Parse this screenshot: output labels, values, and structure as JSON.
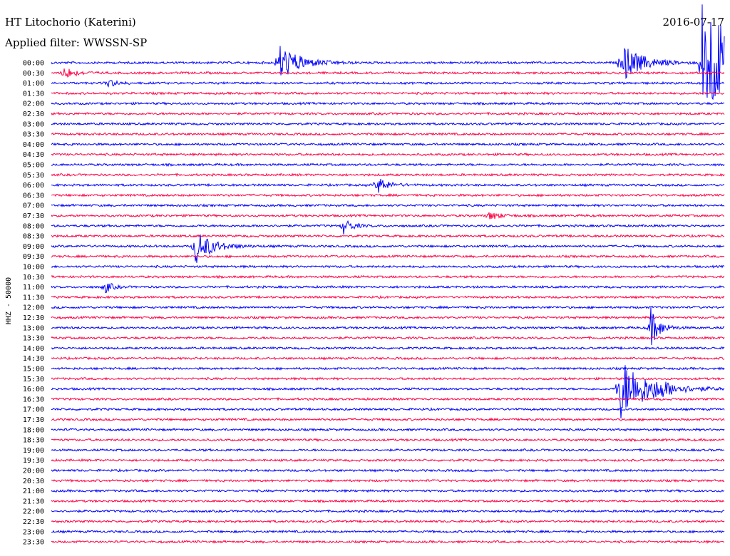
{
  "chart_data": {
    "type": "line",
    "title": "HT Litochorio (Katerini)",
    "subtitle": "Applied filter: WWSSN-SP",
    "date": "2016-07-17",
    "ylabel": "HHZ - 50000",
    "row_labels": [
      "00:00",
      "00:30",
      "01:00",
      "01:30",
      "02:00",
      "02:30",
      "03:00",
      "03:30",
      "04:00",
      "04:30",
      "05:00",
      "05:30",
      "06:00",
      "06:30",
      "07:00",
      "07:30",
      "08:00",
      "08:30",
      "09:00",
      "09:30",
      "10:00",
      "10:30",
      "11:00",
      "11:30",
      "12:00",
      "12:30",
      "13:00",
      "13:30",
      "14:00",
      "14:30",
      "15:00",
      "15:30",
      "16:00",
      "16:30",
      "17:00",
      "17:30",
      "18:00",
      "18:30",
      "19:00",
      "19:30",
      "20:00",
      "20:30",
      "21:00",
      "21:30",
      "22:00",
      "22:30",
      "23:00",
      "23:30"
    ],
    "series_colors": [
      "#0000ff",
      "#ff0044"
    ],
    "row_minutes": 30,
    "events": [
      {
        "row": 0,
        "minute": 10.1,
        "amplitude": 28,
        "duration": 1.8
      },
      {
        "row": 0,
        "minute": 25.4,
        "amplitude": 28,
        "duration": 1.8
      },
      {
        "row": 0,
        "minute": 29.0,
        "amplitude": 90,
        "duration": 3.5
      },
      {
        "row": 1,
        "minute": 0.5,
        "amplitude": 10,
        "duration": 1.0
      },
      {
        "row": 2,
        "minute": 2.5,
        "amplitude": 6,
        "duration": 0.8
      },
      {
        "row": 12,
        "minute": 14.5,
        "amplitude": 14,
        "duration": 0.9
      },
      {
        "row": 15,
        "minute": 19.5,
        "amplitude": 6,
        "duration": 1.0
      },
      {
        "row": 16,
        "minute": 13.0,
        "amplitude": 12,
        "duration": 0.8
      },
      {
        "row": 18,
        "minute": 6.4,
        "amplitude": 25,
        "duration": 1.5
      },
      {
        "row": 22,
        "minute": 2.4,
        "amplitude": 9,
        "duration": 0.6
      },
      {
        "row": 26,
        "minute": 26.7,
        "amplitude": 30,
        "duration": 0.8
      },
      {
        "row": 32,
        "minute": 25.3,
        "amplitude": 45,
        "duration": 2.5
      },
      {
        "row": 32,
        "minute": 27.0,
        "amplitude": 6,
        "duration": 1.0
      }
    ]
  }
}
